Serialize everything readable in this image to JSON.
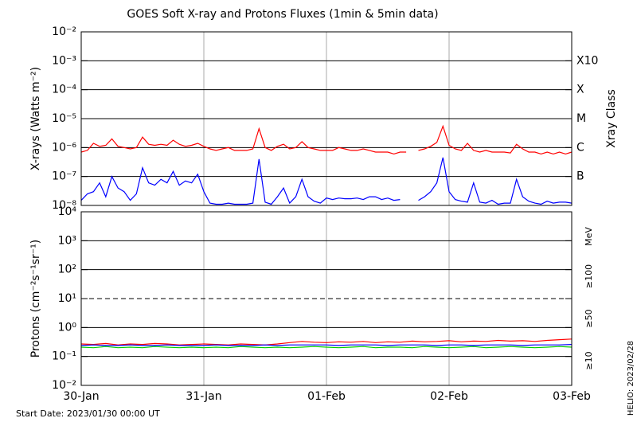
{
  "chart_data": [
    {
      "type": "line",
      "title": "GOES Soft X-ray and Protons Fluxes   (1min & 5min data)",
      "ylabel": "X-rays (Watts m⁻²)",
      "y2label": "Xray Class",
      "yscale": "log",
      "ylim": [
        1e-08,
        0.01
      ],
      "yticks": [
        {
          "value": 0.01,
          "label": "10⁻²"
        },
        {
          "value": 0.001,
          "label": "10⁻³"
        },
        {
          "value": 0.0001,
          "label": "10⁻⁴"
        },
        {
          "value": 1e-05,
          "label": "10⁻⁵"
        },
        {
          "value": 1e-06,
          "label": "10⁻⁶"
        },
        {
          "value": 1e-07,
          "label": "10⁻⁷"
        },
        {
          "value": 1e-08,
          "label": "10⁻⁸"
        }
      ],
      "y2ticks": [
        {
          "value": 0.001,
          "label": "X10"
        },
        {
          "value": 0.0001,
          "label": "X"
        },
        {
          "value": 1e-05,
          "label": "M"
        },
        {
          "value": 1e-06,
          "label": "C"
        },
        {
          "value": 1e-07,
          "label": "B"
        }
      ],
      "grid": true,
      "xlim": [
        0,
        4
      ],
      "x": [
        0,
        0.05,
        0.1,
        0.15,
        0.2,
        0.25,
        0.3,
        0.35,
        0.4,
        0.45,
        0.5,
        0.55,
        0.6,
        0.65,
        0.7,
        0.75,
        0.8,
        0.85,
        0.9,
        0.95,
        1,
        1.05,
        1.1,
        1.15,
        1.2,
        1.25,
        1.3,
        1.35,
        1.4,
        1.45,
        1.5,
        1.55,
        1.6,
        1.65,
        1.7,
        1.75,
        1.8,
        1.85,
        1.9,
        1.95,
        2,
        2.05,
        2.1,
        2.15,
        2.2,
        2.25,
        2.3,
        2.35,
        2.4,
        2.45,
        2.5,
        2.55,
        2.6,
        2.65,
        2.7,
        2.75,
        2.8,
        2.85,
        2.9,
        2.95,
        3,
        3.05,
        3.1,
        3.15,
        3.2,
        3.25,
        3.3,
        3.35,
        3.4,
        3.45,
        3.5,
        3.55,
        3.6,
        3.65,
        3.7,
        3.75,
        3.8,
        3.85,
        3.9,
        3.95,
        4
      ],
      "series": [
        {
          "color": "#ff0000",
          "values": [
            7e-07,
            8e-07,
            1.4e-06,
            1.1e-06,
            1.2e-06,
            2e-06,
            1.1e-06,
            1e-06,
            9e-07,
            1e-06,
            2.3e-06,
            1.3e-06,
            1.2e-06,
            1.3e-06,
            1.2e-06,
            1.8e-06,
            1.3e-06,
            1.1e-06,
            1.2e-06,
            1.4e-06,
            1.1e-06,
            9e-07,
            8e-07,
            9e-07,
            1e-06,
            8e-07,
            8e-07,
            8e-07,
            9e-07,
            4.5e-06,
            1e-06,
            8e-07,
            1.1e-06,
            1.3e-06,
            9e-07,
            1e-06,
            1.6e-06,
            1e-06,
            9e-07,
            8e-07,
            8e-07,
            8e-07,
            1e-06,
            9e-07,
            8e-07,
            8e-07,
            9e-07,
            8e-07,
            7e-07,
            7e-07,
            7e-07,
            6e-07,
            7e-07,
            7e-07,
            null,
            8e-07,
            9e-07,
            1.1e-06,
            1.5e-06,
            5.5e-06,
            1.2e-06,
            9e-07,
            8e-07,
            1.4e-06,
            8e-07,
            7e-07,
            8e-07,
            7e-07,
            7e-07,
            7e-07,
            6.5e-07,
            1.3e-06,
            9e-07,
            7e-07,
            7e-07,
            6e-07,
            7e-07,
            6e-07,
            7e-07,
            6e-07,
            7e-07
          ]
        },
        {
          "color": "#0000ff",
          "values": [
            1.5e-08,
            2.5e-08,
            3e-08,
            6e-08,
            2e-08,
            1e-07,
            4e-08,
            3e-08,
            1.5e-08,
            2.5e-08,
            2e-07,
            6e-08,
            5e-08,
            8e-08,
            6e-08,
            1.5e-07,
            5e-08,
            7e-08,
            6e-08,
            1.2e-07,
            3e-08,
            1.2e-08,
            1.1e-08,
            1.1e-08,
            1.2e-08,
            1.1e-08,
            1.1e-08,
            1.1e-08,
            1.2e-08,
            4e-07,
            1.3e-08,
            1.1e-08,
            2e-08,
            4e-08,
            1.2e-08,
            2e-08,
            8e-08,
            2e-08,
            1.4e-08,
            1.2e-08,
            1.8e-08,
            1.6e-08,
            1.8e-08,
            1.7e-08,
            1.7e-08,
            1.8e-08,
            1.6e-08,
            2e-08,
            2e-08,
            1.6e-08,
            1.8e-08,
            1.5e-08,
            1.6e-08,
            null,
            null,
            1.5e-08,
            2e-08,
            3e-08,
            6e-08,
            4.5e-07,
            3e-08,
            1.6e-08,
            1.4e-08,
            1.3e-08,
            6e-08,
            1.3e-08,
            1.2e-08,
            1.5e-08,
            1.1e-08,
            1.2e-08,
            1.2e-08,
            8e-08,
            2e-08,
            1.4e-08,
            1.2e-08,
            1.1e-08,
            1.4e-08,
            1.2e-08,
            1.3e-08,
            1.3e-08,
            1.2e-08
          ]
        }
      ]
    },
    {
      "type": "line",
      "ylabel": "Protons (cm⁻²s⁻¹sr⁻¹)",
      "unit_label": "MeV",
      "yscale": "log",
      "ylim": [
        0.01,
        10000.0
      ],
      "yticks": [
        {
          "value": 10000.0,
          "label": "10⁴"
        },
        {
          "value": 1000.0,
          "label": "10³"
        },
        {
          "value": 100.0,
          "label": "10²"
        },
        {
          "value": 10.0,
          "label": "10¹"
        },
        {
          "value": 1,
          "label": "10⁰"
        },
        {
          "value": 0.1,
          "label": "10⁻¹"
        },
        {
          "value": 0.01,
          "label": "10⁻²"
        }
      ],
      "threshold": 10,
      "grid": true,
      "xlim": [
        0,
        4
      ],
      "xticks": [
        {
          "value": 0,
          "label": "30-Jan"
        },
        {
          "value": 1,
          "label": "31-Jan"
        },
        {
          "value": 2,
          "label": "01-Feb"
        },
        {
          "value": 3,
          "label": "02-Feb"
        },
        {
          "value": 4,
          "label": "03-Feb"
        }
      ],
      "x": [
        0,
        0.1,
        0.2,
        0.3,
        0.4,
        0.5,
        0.6,
        0.7,
        0.8,
        0.9,
        1,
        1.1,
        1.2,
        1.3,
        1.4,
        1.5,
        1.6,
        1.7,
        1.8,
        1.9,
        2,
        2.1,
        2.2,
        2.3,
        2.4,
        2.5,
        2.6,
        2.7,
        2.8,
        2.9,
        3,
        3.1,
        3.2,
        3.3,
        3.4,
        3.5,
        3.6,
        3.7,
        3.8,
        3.9,
        4
      ],
      "series": [
        {
          "name": "≥10",
          "color": "#ff0000",
          "values": [
            0.27,
            0.26,
            0.28,
            0.25,
            0.27,
            0.26,
            0.28,
            0.27,
            0.25,
            0.26,
            0.27,
            0.26,
            0.25,
            0.27,
            0.26,
            0.25,
            0.27,
            0.3,
            0.33,
            0.31,
            0.3,
            0.32,
            0.31,
            0.33,
            0.3,
            0.32,
            0.31,
            0.34,
            0.32,
            0.33,
            0.35,
            0.32,
            0.34,
            0.33,
            0.36,
            0.34,
            0.35,
            0.33,
            0.36,
            0.38,
            0.4
          ]
        },
        {
          "name": "≥50",
          "color": "#0000ff",
          "values": [
            0.24,
            0.25,
            0.24,
            0.24,
            0.25,
            0.24,
            0.24,
            0.25,
            0.24,
            0.24,
            0.24,
            0.25,
            0.24,
            0.24,
            0.24,
            0.25,
            0.24,
            0.25,
            0.25,
            0.25,
            0.25,
            0.24,
            0.25,
            0.25,
            0.25,
            0.24,
            0.25,
            0.25,
            0.25,
            0.24,
            0.25,
            0.25,
            0.24,
            0.25,
            0.25,
            0.25,
            0.24,
            0.25,
            0.25,
            0.25,
            0.26
          ]
        },
        {
          "name": "≥100",
          "color": "#00cc00",
          "values": [
            0.21,
            0.2,
            0.22,
            0.2,
            0.21,
            0.2,
            0.22,
            0.21,
            0.2,
            0.21,
            0.2,
            0.21,
            0.2,
            0.22,
            0.21,
            0.2,
            0.21,
            0.2,
            0.21,
            0.22,
            0.21,
            0.2,
            0.21,
            0.22,
            0.2,
            0.21,
            0.21,
            0.2,
            0.22,
            0.21,
            0.2,
            0.21,
            0.22,
            0.2,
            0.21,
            0.22,
            0.21,
            0.2,
            0.21,
            0.22,
            0.21
          ]
        }
      ]
    }
  ],
  "footer": "Start Date: 2023/01/30 00:00 UT",
  "credit": "HELIO: 2023/02/28"
}
